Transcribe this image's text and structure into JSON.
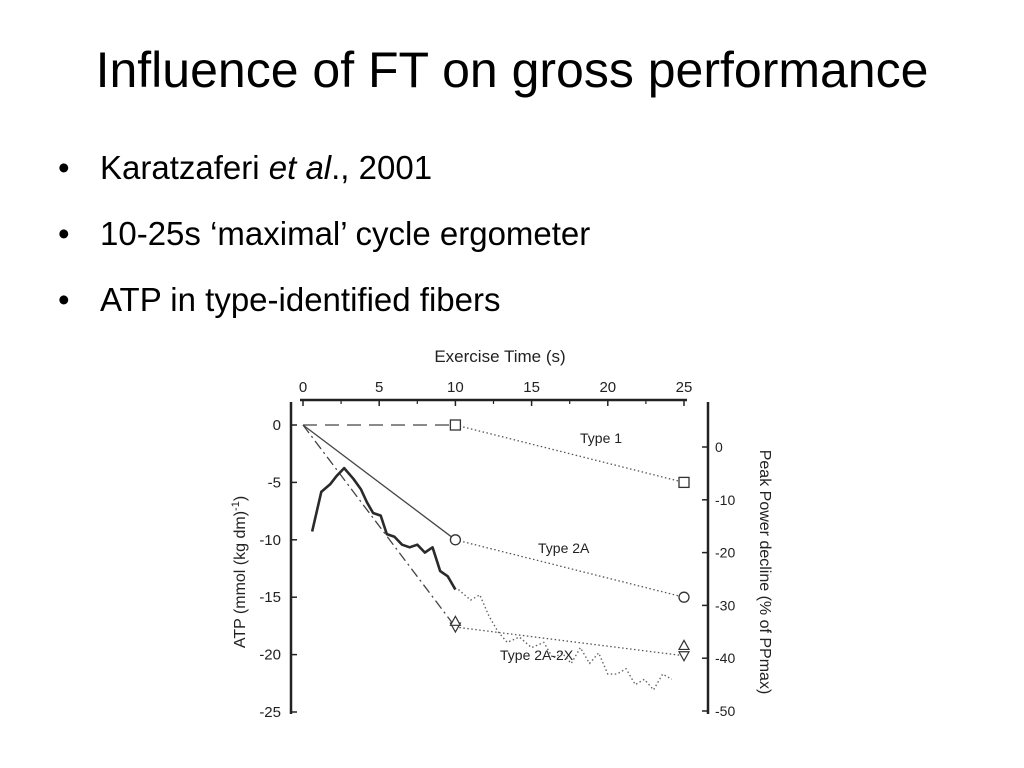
{
  "slide": {
    "title": "Influence of FT on gross performance",
    "bullets": [
      {
        "main": "Karatzaferi ",
        "italic": "et al",
        "rest": "., 2001"
      },
      {
        "main": "10-25s ‘maximal’ cycle ergometer"
      },
      {
        "main": "ATP in type-identified fibers"
      }
    ],
    "bullet_glyph": "•"
  },
  "chart_data": {
    "type": "line",
    "x_axis": {
      "label": "Exercise Time (s)",
      "position": "top",
      "range": [
        0,
        25
      ],
      "ticks": [
        0,
        5,
        10,
        15,
        20,
        25
      ]
    },
    "y_left": {
      "label": "ATP (mmol (kg dm)-1)",
      "range": [
        -25,
        0
      ],
      "ticks": [
        0,
        -5,
        -10,
        -15,
        -20,
        -25
      ]
    },
    "y_right": {
      "label": "Peak Power decline (% of PPmax)",
      "range": [
        -50,
        0
      ],
      "ticks": [
        0,
        -10,
        -20,
        -30,
        -40,
        -50
      ]
    },
    "grid": false,
    "series": [
      {
        "name": "Type 1",
        "style": "dashed then dotted",
        "marker": "square",
        "x": [
          0,
          10,
          25
        ],
        "y": [
          0,
          0,
          -5
        ]
      },
      {
        "name": "Type 2A",
        "style": "solid then dotted",
        "marker": "circle",
        "x": [
          0,
          10,
          25
        ],
        "y": [
          0,
          -10,
          -15
        ]
      },
      {
        "name": "Type 2A-2X",
        "style": "dash-dot then dotted",
        "marker": "triangle-down",
        "x": [
          0,
          10,
          25
        ],
        "y": [
          0,
          -17.6,
          -20.1
        ]
      },
      {
        "style": "marker",
        "marker": "triangle-up",
        "x": [
          10,
          25
        ],
        "y": [
          -17.1,
          -19.2
        ]
      },
      {
        "style": "thick solid, power output vs time (right axis)",
        "x": [
          0.6,
          1.2,
          1.8,
          2.2,
          2.7,
          3.3,
          3.8,
          4.2,
          4.6,
          5.1,
          5.5,
          6.0,
          6.5,
          7.0,
          7.5,
          8.0,
          8.5,
          9.0,
          9.5,
          10.0
        ],
        "y_right": [
          -16,
          -8.5,
          -7,
          -5.5,
          -4,
          -6,
          -8,
          -10.5,
          -12.5,
          -13,
          -16.5,
          -17,
          -18.5,
          -19,
          -18.5,
          -20,
          -19,
          -23.5,
          -24.5,
          -27
        ]
      },
      {
        "style": "dotted, power output vs time (right axis)",
        "x": [
          10.2,
          11.0,
          11.6,
          12.2,
          12.8,
          13.4,
          14.2,
          15.0,
          15.8,
          16.4,
          17.0,
          17.6,
          18.2,
          18.8,
          19.4,
          20.0,
          20.6,
          21.2,
          21.8,
          22.4,
          23.0,
          23.6,
          24.2
        ],
        "y_right": [
          -27,
          -29,
          -28,
          -32,
          -35,
          -37,
          -36,
          -38,
          -37,
          -40,
          -39,
          -41,
          -38,
          -41,
          -39,
          -43,
          -43,
          -42,
          -45,
          -44,
          -46,
          -43,
          -44
        ]
      }
    ],
    "annotations": [
      "Type 1",
      "Type 2A",
      "Type 2A-2X"
    ]
  },
  "figure_text": {
    "x_label": "Exercise Time (s)",
    "y_left_label": "ATP (mmol (kg dm)",
    "y_left_sup": "-1",
    "y_left_close": ")",
    "y_right_label": "Peak Power decline (% of PPmax)",
    "x_ticks": [
      "0",
      "5",
      "10",
      "15",
      "20",
      "25"
    ],
    "y_left_ticks": [
      "0",
      "-5",
      "-10",
      "-15",
      "-20",
      "-25"
    ],
    "y_right_ticks": [
      "0",
      "-10",
      "-20",
      "-30",
      "-40",
      "-50"
    ],
    "label_type1": "Type 1",
    "label_type2a": "Type 2A",
    "label_type2a2x": "Type 2A-2X"
  }
}
